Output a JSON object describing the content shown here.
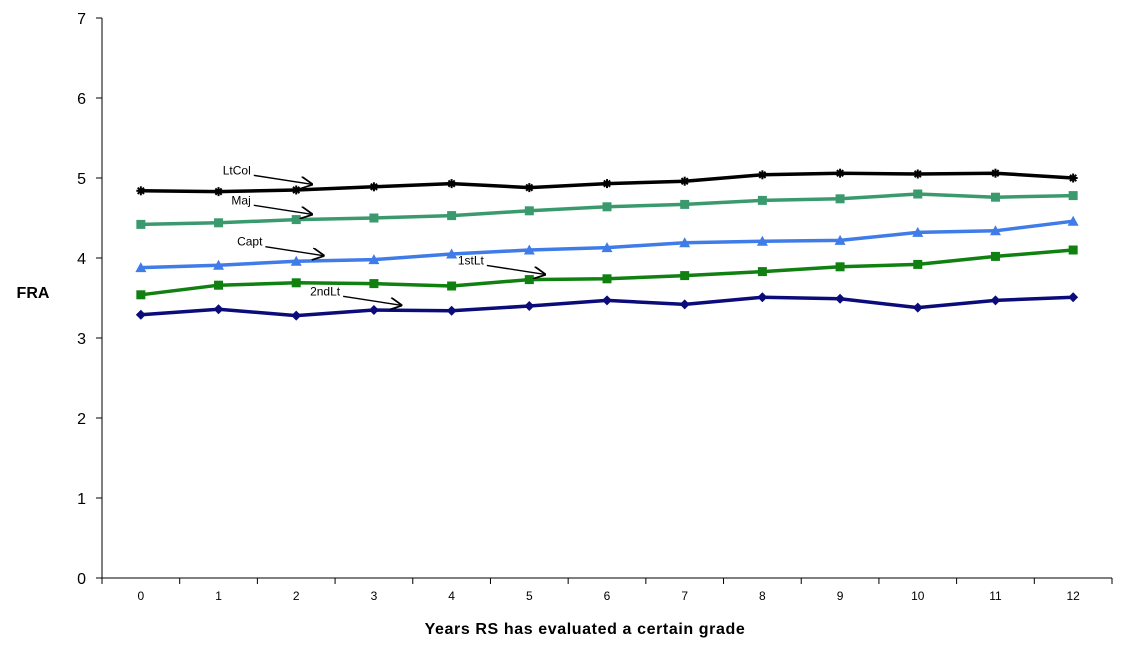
{
  "chart_data": {
    "type": "line",
    "title": "",
    "xlabel": "Years RS has evaluated a certain grade",
    "ylabel": "FRA",
    "categories": [
      "0",
      "1",
      "2",
      "3",
      "4",
      "5",
      "6",
      "7",
      "8",
      "9",
      "10",
      "11",
      "12"
    ],
    "ylim": [
      0,
      7
    ],
    "yticks": [
      0,
      1,
      2,
      3,
      4,
      5,
      6,
      7
    ],
    "grid": false,
    "legend": "none",
    "series": [
      {
        "name": "LtCol",
        "color": "#000000",
        "marker": "asterisk",
        "values": [
          4.84,
          4.83,
          4.85,
          4.89,
          4.93,
          4.88,
          4.93,
          4.96,
          5.04,
          5.06,
          5.05,
          5.06,
          5.0
        ]
      },
      {
        "name": "Maj",
        "color": "#3a9a6e",
        "marker": "square",
        "values": [
          4.42,
          4.44,
          4.48,
          4.5,
          4.53,
          4.59,
          4.64,
          4.67,
          4.72,
          4.74,
          4.8,
          4.76,
          4.78
        ]
      },
      {
        "name": "Capt",
        "color": "#3f7ce8",
        "marker": "triangle",
        "values": [
          3.88,
          3.91,
          3.96,
          3.98,
          4.05,
          4.1,
          4.13,
          4.19,
          4.21,
          4.22,
          4.32,
          4.34,
          4.46
        ]
      },
      {
        "name": "1stLt",
        "color": "#108010",
        "marker": "square",
        "values": [
          3.54,
          3.66,
          3.69,
          3.68,
          3.65,
          3.73,
          3.74,
          3.78,
          3.83,
          3.89,
          3.92,
          4.02,
          4.1
        ]
      },
      {
        "name": "2ndLt",
        "color": "#0b0b7a",
        "marker": "diamond",
        "values": [
          3.29,
          3.36,
          3.28,
          3.35,
          3.34,
          3.4,
          3.47,
          3.42,
          3.51,
          3.49,
          3.38,
          3.47,
          3.51
        ]
      }
    ],
    "annotations": [
      {
        "text": "LtCol",
        "series": "LtCol",
        "x": 2.2
      },
      {
        "text": "Maj",
        "series": "Maj",
        "x": 2.2
      },
      {
        "text": "Capt",
        "series": "Capt",
        "x": 2.35
      },
      {
        "text": "1stLt",
        "series": "1stLt",
        "x": 5.2
      },
      {
        "text": "2ndLt",
        "series": "2ndLt",
        "x": 3.35
      }
    ]
  }
}
